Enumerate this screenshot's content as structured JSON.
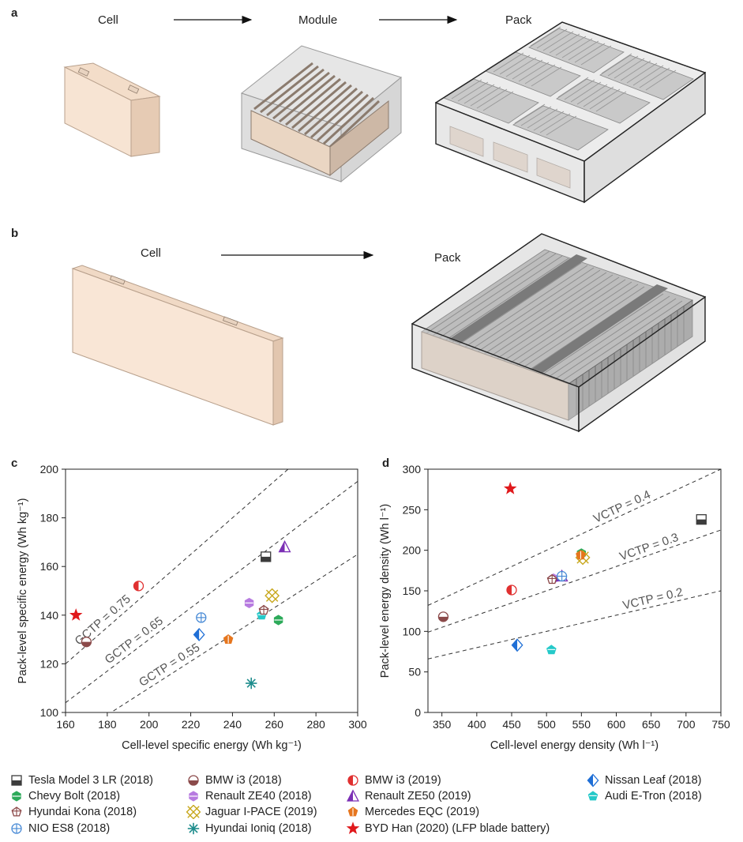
{
  "panels": {
    "a": {
      "label": "a",
      "cell": "Cell",
      "module": "Module",
      "pack": "Pack"
    },
    "b": {
      "label": "b",
      "cell": "Cell",
      "pack": "Pack"
    },
    "c": {
      "label": "c"
    },
    "d": {
      "label": "d"
    }
  },
  "colors": {
    "tesla": "#3c3c3c",
    "bmw2018": "#8b4a4a",
    "bmw2019": "#e03030",
    "nissan": "#1f6fd6",
    "chevy": "#2daa5a",
    "renault40": "#b77be0",
    "renault50": "#7b2fb5",
    "audi": "#25c9c9",
    "kona": "#8a4646",
    "jaguar": "#c8a81e",
    "mercedes": "#e6761e",
    "nio": "#4a8bd6",
    "ioniq": "#1d8c8c",
    "byd": "#e0191c"
  },
  "chart_data": [
    {
      "type": "scatter",
      "panel": "c",
      "xlabel": "Cell-level specific energy (Wh kg⁻¹)",
      "ylabel": "Pack-level specific energy (Wh kg⁻¹)",
      "xlim": [
        160,
        300
      ],
      "ylim": [
        100,
        200
      ],
      "xticks": [
        160,
        180,
        200,
        220,
        240,
        260,
        280,
        300
      ],
      "yticks": [
        100,
        120,
        140,
        160,
        180,
        200
      ],
      "reference_lines": [
        {
          "label": "GCTP = 0.75",
          "slope": 0.75
        },
        {
          "label": "GCTP = 0.65",
          "slope": 0.65
        },
        {
          "label": "GCTP = 0.55",
          "slope": 0.55
        }
      ],
      "points": [
        {
          "name": "Tesla Model 3 LR (2018)",
          "key": "tesla",
          "x": 256,
          "y": 164
        },
        {
          "name": "BMW i3 (2018)",
          "key": "bmw2018",
          "x": 170,
          "y": 129
        },
        {
          "name": "BMW i3 (2019)",
          "key": "bmw2019",
          "x": 195,
          "y": 152
        },
        {
          "name": "Nissan Leaf (2018)",
          "key": "nissan",
          "x": 224,
          "y": 132
        },
        {
          "name": "Chevy Bolt (2018)",
          "key": "chevy",
          "x": 262,
          "y": 138
        },
        {
          "name": "Renault ZE40 (2018)",
          "key": "renault40",
          "x": 248,
          "y": 145
        },
        {
          "name": "Renault ZE50 (2019)",
          "key": "renault50",
          "x": 265,
          "y": 168
        },
        {
          "name": "Audi E-Tron (2018)",
          "key": "audi",
          "x": 254,
          "y": 140
        },
        {
          "name": "Hyundai Kona (2018)",
          "key": "kona",
          "x": 255,
          "y": 142
        },
        {
          "name": "Jaguar I-PACE (2019)",
          "key": "jaguar",
          "x": 259,
          "y": 148
        },
        {
          "name": "Mercedes EQC (2019)",
          "key": "mercedes",
          "x": 238,
          "y": 130
        },
        {
          "name": "NIO ES8 (2018)",
          "key": "nio",
          "x": 225,
          "y": 139
        },
        {
          "name": "Hyundai Ioniq (2018)",
          "key": "ioniq",
          "x": 249,
          "y": 112
        },
        {
          "name": "BYD Han (2020) (LFP blade battery)",
          "key": "byd",
          "x": 165,
          "y": 140
        }
      ]
    },
    {
      "type": "scatter",
      "panel": "d",
      "xlabel": "Cell-level energy density (Wh l⁻¹)",
      "ylabel": "Pack-level energy density (Wh l⁻¹)",
      "xlim": [
        330,
        750
      ],
      "ylim": [
        0,
        300
      ],
      "xticks": [
        350,
        400,
        450,
        500,
        550,
        600,
        650,
        700,
        750
      ],
      "yticks": [
        0,
        50,
        100,
        150,
        200,
        250,
        300
      ],
      "reference_lines": [
        {
          "label": "VCTP = 0.4",
          "slope": 0.4
        },
        {
          "label": "VCTP = 0.3",
          "slope": 0.3
        },
        {
          "label": "VCTP = 0.2",
          "slope": 0.2
        }
      ],
      "points": [
        {
          "name": "Tesla Model 3 LR (2018)",
          "key": "tesla",
          "x": 722,
          "y": 238
        },
        {
          "name": "BMW i3 (2018)",
          "key": "bmw2018",
          "x": 352,
          "y": 118
        },
        {
          "name": "BMW i3 (2019)",
          "key": "bmw2019",
          "x": 450,
          "y": 151
        },
        {
          "name": "Nissan Leaf (2018)",
          "key": "nissan",
          "x": 458,
          "y": 83
        },
        {
          "name": "Chevy Bolt (2018)",
          "key": "chevy",
          "x": 550,
          "y": 196
        },
        {
          "name": "Renault ZE40 (2018)",
          "key": "renault40",
          "x": 510,
          "y": 165
        },
        {
          "name": "Renault ZE50 (2019)",
          "key": "renault50",
          "x": 522,
          "y": 168
        },
        {
          "name": "Audi E-Tron (2018)",
          "key": "audi",
          "x": 507,
          "y": 77
        },
        {
          "name": "Hyundai Kona (2018)",
          "key": "kona",
          "x": 508,
          "y": 164
        },
        {
          "name": "Jaguar I-PACE (2019)",
          "key": "jaguar",
          "x": 552,
          "y": 191
        },
        {
          "name": "Mercedes EQC (2019)",
          "key": "mercedes",
          "x": 549,
          "y": 194
        },
        {
          "name": "NIO ES8 (2018)",
          "key": "nio",
          "x": 522,
          "y": 168
        },
        {
          "name": "BYD Han (2020) (LFP blade battery)",
          "key": "byd",
          "x": 448,
          "y": 276
        }
      ]
    }
  ],
  "legend": [
    {
      "key": "tesla",
      "label": "Tesla Model 3 LR (2018)"
    },
    {
      "key": "chevy",
      "label": "Chevy Bolt (2018)"
    },
    {
      "key": "kona",
      "label": "Hyundai Kona (2018)"
    },
    {
      "key": "nio",
      "label": "NIO ES8 (2018)"
    },
    {
      "key": "bmw2018",
      "label": "BMW i3 (2018)"
    },
    {
      "key": "renault40",
      "label": "Renault ZE40 (2018)"
    },
    {
      "key": "jaguar",
      "label": "Jaguar I-PACE (2019)"
    },
    {
      "key": "ioniq",
      "label": "Hyundai Ioniq (2018)"
    },
    {
      "key": "bmw2019",
      "label": "BMW i3 (2019)"
    },
    {
      "key": "renault50",
      "label": "Renault ZE50 (2019)"
    },
    {
      "key": "mercedes",
      "label": "Mercedes EQC (2019)"
    },
    {
      "key": "byd",
      "label": "BYD Han (2020) (LFP blade battery)"
    },
    {
      "key": "nissan",
      "label": "Nissan Leaf (2018)"
    },
    {
      "key": "audi",
      "label": "Audi E-Tron (2018)"
    }
  ]
}
